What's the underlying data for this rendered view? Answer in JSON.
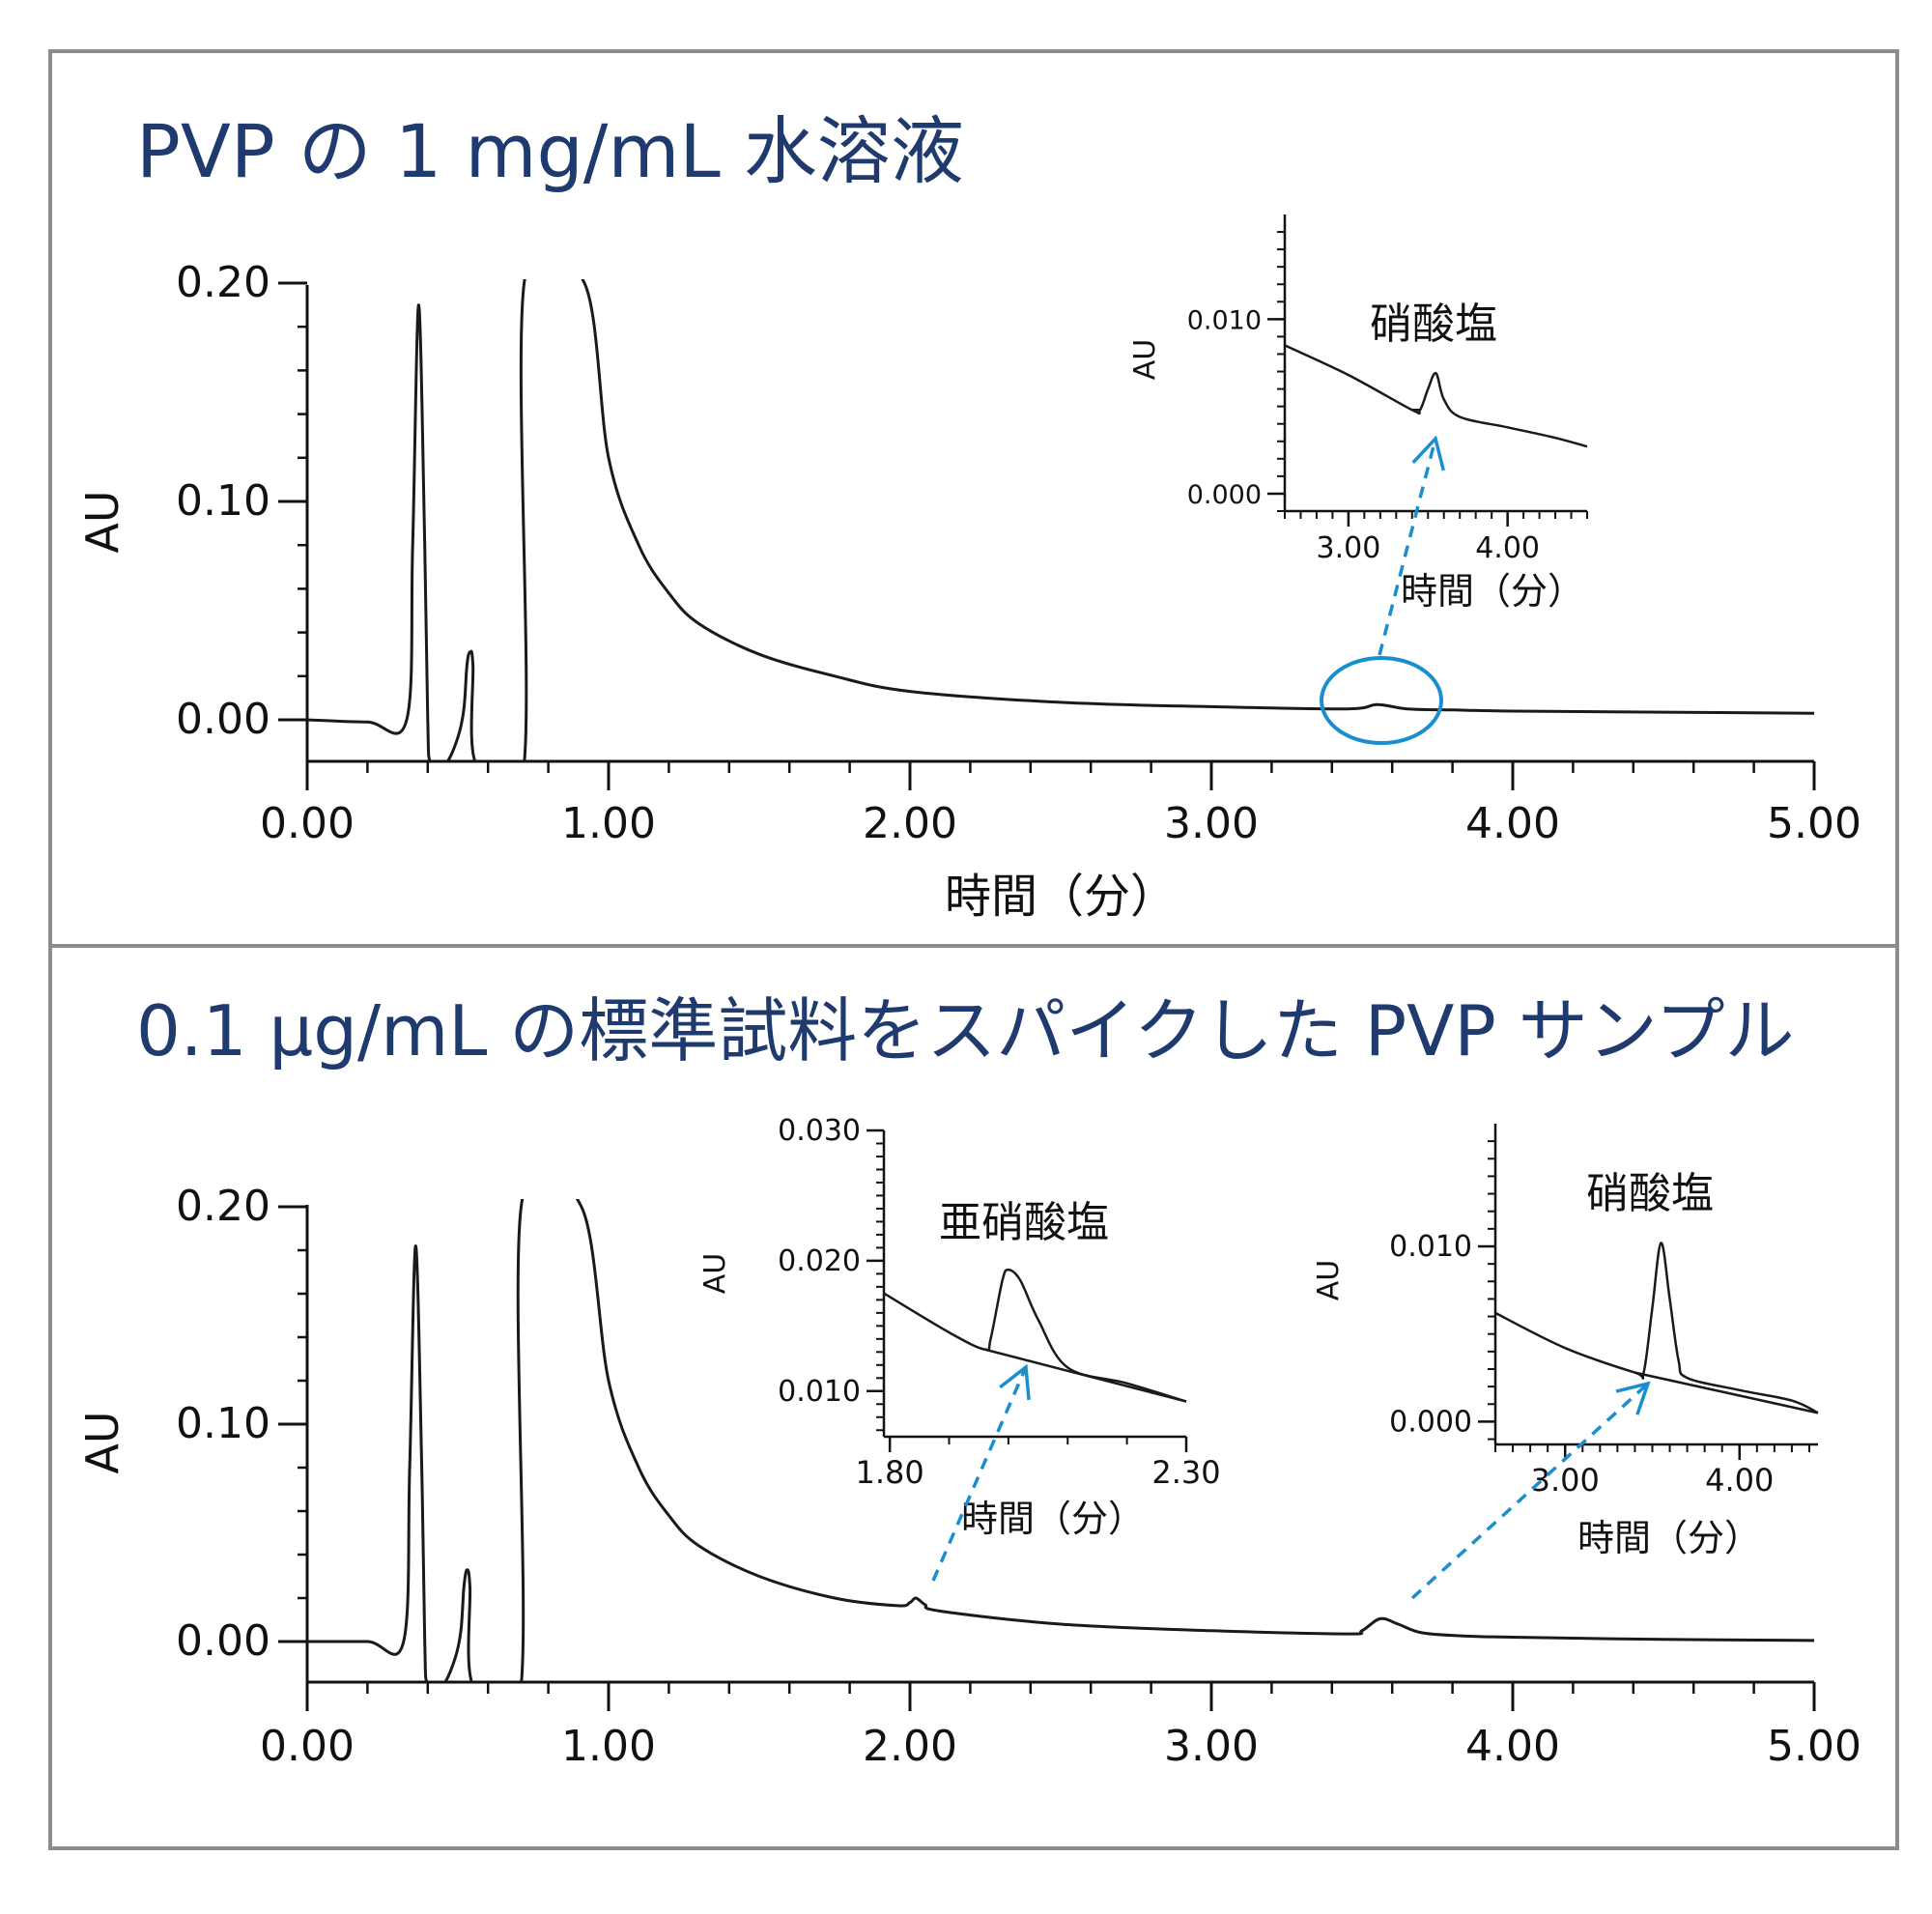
{
  "panels": [
    {
      "title": "PVP の 1 mg/mL 水溶液"
    },
    {
      "title": "0.1 µg/mL の標準試料をスパイクした PVP サンプル"
    }
  ],
  "colors": {
    "title": "#1f3a6e",
    "trace": "#1a1a1a",
    "callout": "#1a8fcf",
    "frame": "#8c8c8c"
  },
  "chart_data": [
    {
      "type": "line",
      "title": "PVP の 1 mg/mL 水溶液",
      "xlabel": "時間（分）",
      "ylabel": "AU",
      "xlim": [
        0,
        5
      ],
      "ylim": [
        -0.02,
        0.2
      ],
      "xticks": [
        "0.00",
        "1.00",
        "2.00",
        "3.00",
        "4.00",
        "5.00"
      ],
      "yticks": [
        "0.00",
        "0.10",
        "0.20"
      ],
      "series": [
        {
          "x": [
            0,
            0.2,
            0.33,
            0.35,
            0.37,
            0.39,
            0.4,
            0.41,
            0.46,
            0.5,
            0.52,
            0.53,
            0.54,
            0.55,
            0.56,
            0.72,
            0.72,
            0.92,
            1.0,
            1.1,
            1.2,
            1.3,
            1.5,
            1.75,
            2.0,
            2.5,
            3.0,
            3.45,
            3.55,
            3.65,
            3.8,
            4.0,
            4.5,
            5.0
          ],
          "y": [
            0,
            -0.001,
            0.0,
            0.08,
            0.19,
            0.08,
            0.0,
            -0.02,
            -0.02,
            -0.008,
            0.005,
            0.025,
            0.031,
            0.025,
            -0.02,
            -0.02,
            0.2,
            0.2,
            0.12,
            0.08,
            0.058,
            0.044,
            0.03,
            0.02,
            0.013,
            0.008,
            0.006,
            0.005,
            0.007,
            0.005,
            0.0045,
            0.004,
            0.0035,
            0.003
          ]
        }
      ],
      "annotations": [
        "硝酸塩"
      ],
      "insets": [
        {
          "ylabel": "AU",
          "xlabel": "時間（分）",
          "xlim": [
            2.6,
            4.5
          ],
          "ylim": [
            -0.001,
            0.016
          ],
          "xticks": [
            "3.00",
            "4.00"
          ],
          "yticks": [
            "0.000",
            "0.010"
          ],
          "label": "硝酸塩",
          "series": [
            {
              "x": [
                2.6,
                3.0,
                3.4,
                3.45,
                3.5,
                3.55,
                3.6,
                3.7,
                4.0,
                4.3,
                4.5
              ],
              "y": [
                0.0085,
                0.0068,
                0.0048,
                0.0048,
                0.006,
                0.0069,
                0.0054,
                0.0044,
                0.0038,
                0.0032,
                0.0027
              ]
            }
          ]
        }
      ]
    },
    {
      "type": "line",
      "title": "0.1 µg/mL の標準試料をスパイクした PVP サンプル",
      "xlabel": "",
      "ylabel": "AU",
      "xlim": [
        0,
        5
      ],
      "ylim": [
        -0.02,
        0.2
      ],
      "xticks": [
        "0.00",
        "1.00",
        "2.00",
        "3.00",
        "4.00",
        "5.00"
      ],
      "yticks": [
        "0.00",
        "0.10",
        "0.20"
      ],
      "series": [
        {
          "x": [
            0,
            0.2,
            0.32,
            0.34,
            0.36,
            0.38,
            0.39,
            0.4,
            0.45,
            0.49,
            0.51,
            0.52,
            0.53,
            0.54,
            0.55,
            0.71,
            0.71,
            0.91,
            1.0,
            1.1,
            1.2,
            1.3,
            1.5,
            1.75,
            1.96,
            2.0,
            2.02,
            2.05,
            2.1,
            2.5,
            3.0,
            3.45,
            3.5,
            3.56,
            3.62,
            3.7,
            3.85,
            4.0,
            4.5,
            5.0
          ],
          "y": [
            0,
            0,
            0.0,
            0.08,
            0.182,
            0.08,
            0.0,
            -0.02,
            -0.02,
            -0.008,
            0.005,
            0.025,
            0.033,
            0.025,
            -0.02,
            -0.02,
            0.2,
            0.2,
            0.12,
            0.08,
            0.058,
            0.044,
            0.03,
            0.02,
            0.0165,
            0.018,
            0.02,
            0.017,
            0.014,
            0.008,
            0.005,
            0.0035,
            0.005,
            0.0105,
            0.008,
            0.004,
            0.0025,
            0.002,
            0.001,
            0.0005
          ]
        }
      ],
      "insets": [
        {
          "ylabel": "AU",
          "xlabel": "時間（分）",
          "xlim": [
            1.79,
            2.3
          ],
          "ylim": [
            0.0065,
            0.03
          ],
          "xticks": [
            "1.80",
            "2.30"
          ],
          "yticks": [
            "0.010",
            "0.020",
            "0.030"
          ],
          "label": "亜硝酸塩",
          "series": [
            {
              "x": [
                1.79,
                1.9,
                1.96,
                1.97,
                1.99,
                2.0,
                2.02,
                2.05,
                2.1,
                2.2,
                2.3
              ],
              "y": [
                0.0175,
                0.0145,
                0.0132,
                0.014,
                0.0185,
                0.0193,
                0.0185,
                0.0155,
                0.0118,
                0.0106,
                0.0092
              ]
            }
          ]
        },
        {
          "ylabel": "AU",
          "xlabel": "時間（分）",
          "xlim": [
            2.6,
            4.45
          ],
          "ylim": [
            -0.0013,
            0.017
          ],
          "xticks": [
            "3.00",
            "4.00"
          ],
          "yticks": [
            "0.000",
            "0.010"
          ],
          "label": "硝酸塩",
          "series": [
            {
              "x": [
                2.6,
                3.0,
                3.4,
                3.45,
                3.5,
                3.55,
                3.6,
                3.65,
                3.7,
                4.0,
                4.3,
                4.45
              ],
              "y": [
                0.0062,
                0.0042,
                0.0028,
                0.0028,
                0.0065,
                0.0102,
                0.007,
                0.0035,
                0.0025,
                0.0018,
                0.0012,
                0.0005
              ]
            }
          ]
        }
      ]
    }
  ]
}
